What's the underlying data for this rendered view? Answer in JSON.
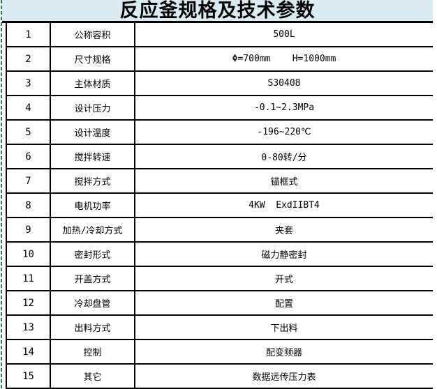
{
  "title": "反应釜规格及技术参数",
  "colors": {
    "title_bg": "#daebf2",
    "border": "#000000",
    "page_break_green": "#2e7d52"
  },
  "table": {
    "rows": [
      {
        "num": "1",
        "label": "公称容积",
        "value": "500L"
      },
      {
        "num": "2",
        "label": "尺寸规格",
        "value": "Φ=700mm    H=1000mm"
      },
      {
        "num": "3",
        "label": "主体材质",
        "value": "S30408"
      },
      {
        "num": "4",
        "label": "设计压力",
        "value": "-0.1~2.3MPa"
      },
      {
        "num": "5",
        "label": "设计温度",
        "value": "-196~220℃"
      },
      {
        "num": "6",
        "label": "搅拌转速",
        "value": "0-80转/分"
      },
      {
        "num": "7",
        "label": "搅拌方式",
        "value": "锚框式"
      },
      {
        "num": "8",
        "label": "电机功率",
        "value": "4KW  ExdIIBT4"
      },
      {
        "num": "9",
        "label": "加热/冷却方式",
        "value": "夹套"
      },
      {
        "num": "10",
        "label": "密封形式",
        "value": "磁力静密封"
      },
      {
        "num": "11",
        "label": "开盖方式",
        "value": "开式"
      },
      {
        "num": "12",
        "label": "冷却盘管",
        "value": "配置"
      },
      {
        "num": "13",
        "label": "出料方式",
        "value": "下出料"
      },
      {
        "num": "14",
        "label": "控制",
        "value": "配变频器"
      },
      {
        "num": "15",
        "label": "其它",
        "value": "数据远传压力表"
      }
    ]
  }
}
